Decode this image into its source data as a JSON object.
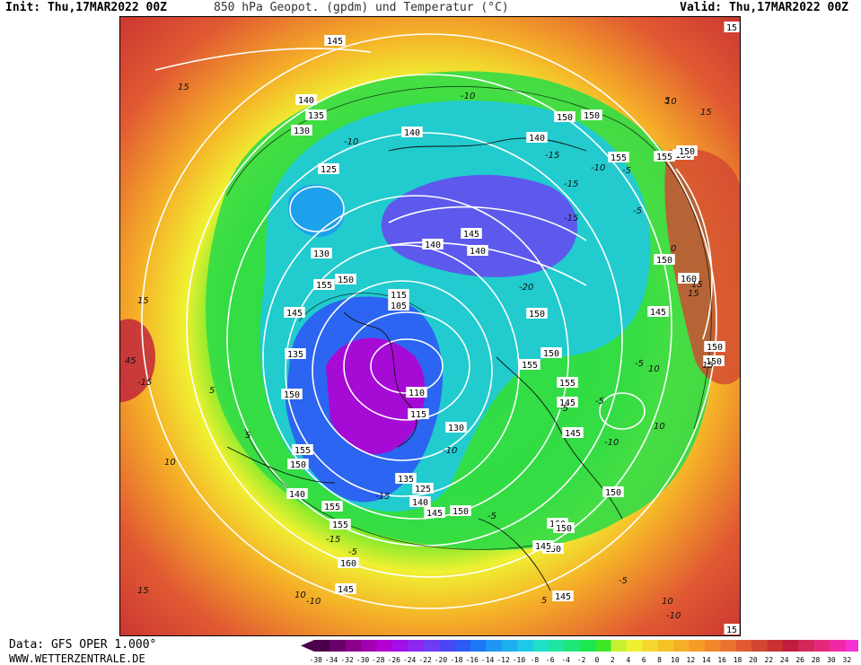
{
  "header": {
    "init": "Init: Thu,17MAR2022 00Z",
    "title": "850 hPa Geopot. (gpdm) und Temperatur (°C)",
    "valid": "Valid: Thu,17MAR2022 00Z"
  },
  "footer": {
    "data_source": "Data: GFS OPER 1.000°",
    "website": "WWW.WETTERZENTRALE.DE"
  },
  "colorbar": {
    "labels": [
      "-38",
      "-34",
      "-32",
      "-30",
      "-28",
      "-26",
      "-24",
      "-22",
      "-20",
      "-18",
      "-16",
      "-14",
      "-12",
      "-10",
      "-8",
      "-6",
      "-4",
      "-2",
      "0",
      "2",
      "4",
      "6",
      "8",
      "10",
      "12",
      "14",
      "16",
      "18",
      "20",
      "22",
      "24",
      "26",
      "28",
      "30",
      "32"
    ],
    "colors": [
      "#4b004b",
      "#6a006a",
      "#8a008a",
      "#a000b0",
      "#b400d2",
      "#a010e8",
      "#8c28f0",
      "#6e3cf5",
      "#4a46f5",
      "#2e5af5",
      "#1e78f5",
      "#1e96f5",
      "#1eaff0",
      "#1ec8e6",
      "#1ee1c8",
      "#1ee6a0",
      "#1ee678",
      "#1ee650",
      "#40e628",
      "#c8f032",
      "#f0f032",
      "#f5d732",
      "#f5c328",
      "#f5af28",
      "#f59b28",
      "#f0872d",
      "#eb7332",
      "#e15a32",
      "#d24632",
      "#c83232",
      "#be1e3c",
      "#d2285a",
      "#e6287d",
      "#f028a5",
      "#f532d2"
    ]
  },
  "map": {
    "contour_labels": [
      "145",
      "140",
      "135",
      "130",
      "125",
      "130",
      "155",
      "150",
      "145",
      "135",
      "150",
      "155",
      "150",
      "155",
      "160",
      "145",
      "155",
      "140",
      "115",
      "105",
      "110",
      "115",
      "130",
      "135",
      "125",
      "140",
      "145",
      "150",
      "140",
      "150",
      "155",
      "150",
      "150",
      "160",
      "145",
      "150",
      "155",
      "145",
      "145",
      "150",
      "155",
      "155",
      "150",
      "150",
      "150",
      "160",
      "145",
      "150",
      "150",
      "15",
      "15",
      "145",
      "140",
      "145",
      "140",
      "140",
      "150",
      "150"
    ],
    "temperature_labels": [
      "15",
      "15",
      "10",
      "5",
      "5",
      "-10",
      "-10",
      "-15",
      "-15",
      "-20",
      "-5",
      "-5",
      "-10",
      "-15",
      "-15",
      "-10",
      "-5",
      "-5",
      "-5",
      "10",
      "10",
      "15",
      "15",
      "45",
      "-15",
      "-15",
      "-10",
      "-5",
      "-5",
      "0",
      "5",
      "10",
      "15",
      "10",
      "5",
      "-5",
      "-10",
      "15",
      "15",
      "10",
      "-10"
    ]
  }
}
